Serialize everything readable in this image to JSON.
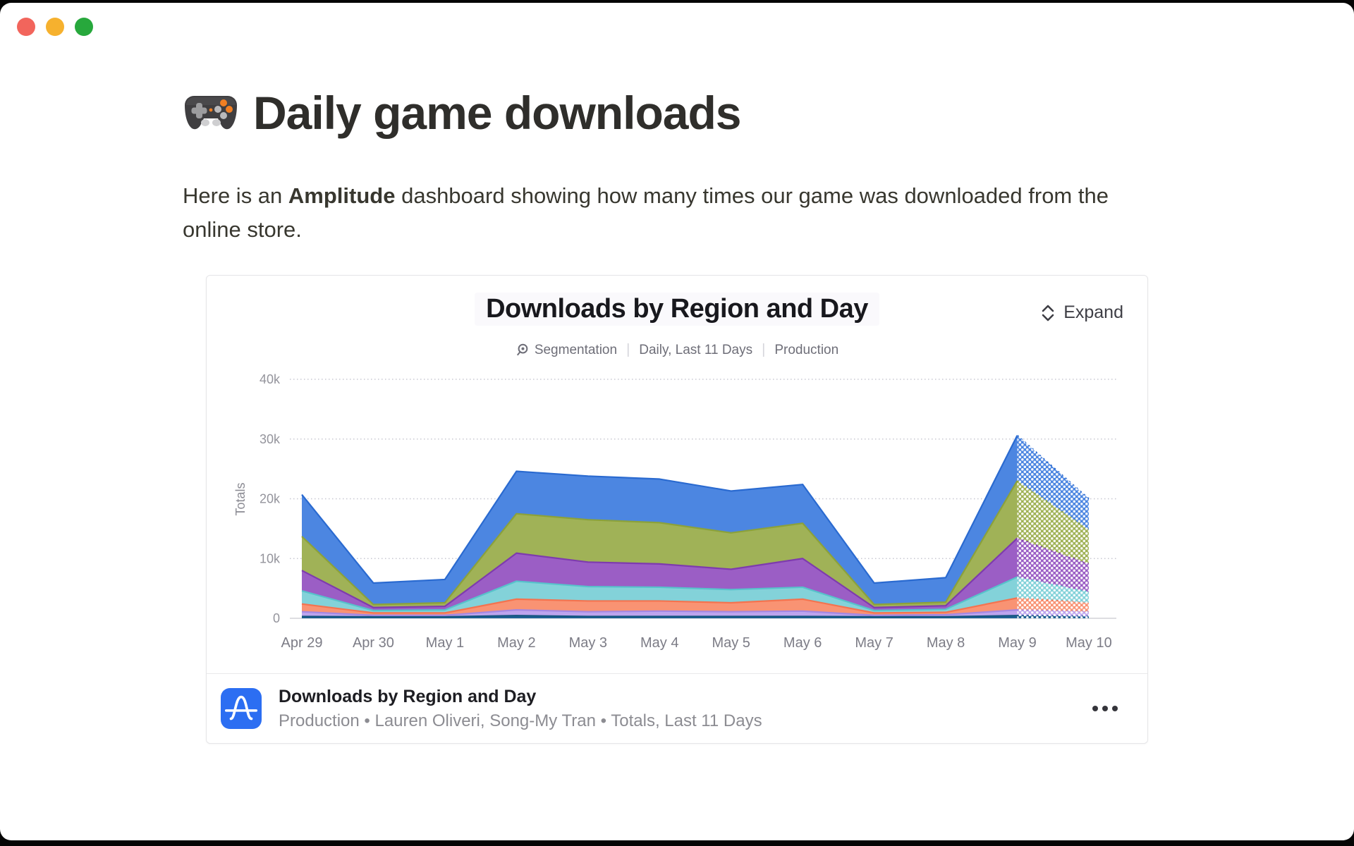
{
  "window": {
    "traffic_lights": [
      {
        "name": "close",
        "color": "#F2655C"
      },
      {
        "name": "minimize",
        "color": "#F6B12E"
      },
      {
        "name": "zoom",
        "color": "#27A83C"
      }
    ]
  },
  "page": {
    "emoji": "🎮",
    "title": "Daily game downloads",
    "intro_line1_pre": "Here is an ",
    "intro_bold": "Amplitude",
    "intro_line1_post": " dashboard showing how many times our game was downloaded from the",
    "intro_line2": "online store."
  },
  "card": {
    "title": "Downloads by Region and Day",
    "expand_label": "Expand",
    "meta": {
      "tool": "Segmentation",
      "range": "Daily, Last 11 Days",
      "env": "Production",
      "sep": "|"
    },
    "footer": {
      "title": "Downloads by Region and Day",
      "subtitle": "Production • Lauren Oliveri, Song-My Tran • Totals, Last 11 Days",
      "brand_color": "#2C6EF2"
    }
  },
  "chart_data": {
    "type": "area",
    "stacked": true,
    "title": "Downloads by Region and Day",
    "xlabel": "",
    "ylabel": "Totals",
    "unit": "downloads",
    "x": [
      "Apr 29",
      "Apr 30",
      "May 1",
      "May 2",
      "May 3",
      "May 4",
      "May 5",
      "May 6",
      "May 7",
      "May 8",
      "May 9",
      "May 10"
    ],
    "ylim": [
      0,
      40000
    ],
    "yticks": [
      "0",
      "10k",
      "20k",
      "30k",
      "40k"
    ],
    "grid": "horizontal-dotted",
    "legend": "none",
    "note": "segment from May 9 to May 10 rendered with dotted dissolve (incomplete day)",
    "series": [
      {
        "name": "series-1-navy",
        "color": "#1d6093",
        "edge": "#14557f",
        "values": [
          300,
          250,
          250,
          450,
          300,
          300,
          300,
          300,
          250,
          250,
          450,
          300
        ]
      },
      {
        "name": "series-2-lavender",
        "color": "#bda4ee",
        "edge": "#a487e2",
        "values": [
          800,
          250,
          250,
          950,
          800,
          900,
          800,
          900,
          250,
          350,
          950,
          800
        ]
      },
      {
        "name": "series-3-salmon",
        "color": "#f99373",
        "edge": "#f4734f",
        "values": [
          1300,
          400,
          400,
          1800,
          1800,
          1700,
          1500,
          2000,
          400,
          400,
          2000,
          1500
        ]
      },
      {
        "name": "series-4-teal",
        "color": "#83d2d9",
        "edge": "#57c2cb",
        "values": [
          2200,
          400,
          500,
          3000,
          2400,
          2300,
          2200,
          2000,
          400,
          500,
          3500,
          1800
        ]
      },
      {
        "name": "series-5-purple",
        "color": "#9b5ec5",
        "edge": "#7e3bae",
        "values": [
          3400,
          500,
          600,
          4700,
          4100,
          3900,
          3400,
          4800,
          500,
          600,
          6500,
          4700
        ]
      },
      {
        "name": "series-6-olive",
        "color": "#a0b257",
        "edge": "#8ba13b",
        "values": [
          5700,
          500,
          600,
          6600,
          7100,
          6900,
          6100,
          5900,
          500,
          600,
          9600,
          5700
        ]
      },
      {
        "name": "series-7-blue",
        "color": "#4c86e1",
        "edge": "#2a6ad0",
        "values": [
          7000,
          3600,
          3900,
          7100,
          7300,
          7300,
          7000,
          6500,
          3600,
          4100,
          7600,
          5200
        ]
      }
    ],
    "totals": [
      20700,
      5900,
      6500,
      24600,
      23800,
      23300,
      21300,
      22400,
      5900,
      6800,
      30600,
      20000
    ]
  }
}
